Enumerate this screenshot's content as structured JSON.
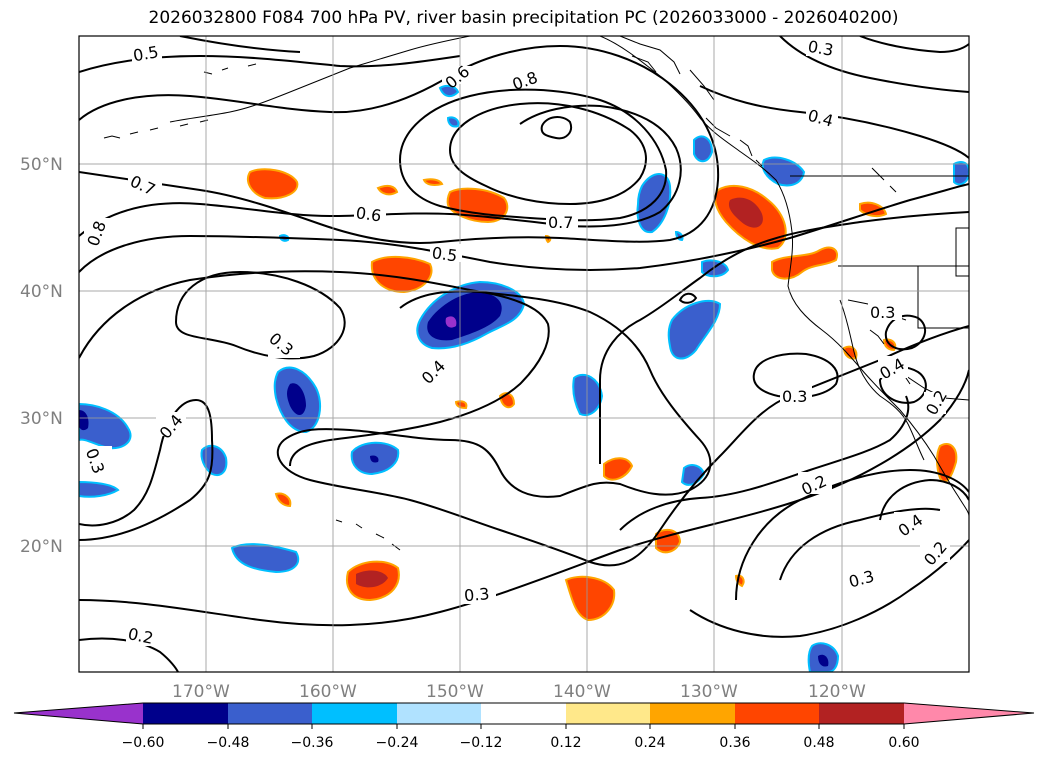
{
  "title": "2026032800 F084 700 hPa PV, river basin precipitation PC (2026033000 - 2026040200)",
  "lat_labels": [
    "50°N",
    "40°N",
    "30°N",
    "20°N"
  ],
  "lon_labels": [
    "170°W",
    "160°W",
    "150°W",
    "140°W",
    "130°W",
    "120°W"
  ],
  "contour_labels": [
    "0.5",
    "0.6",
    "0.8",
    "0.3",
    "0.4",
    "0.7",
    "0.8",
    "0.6",
    "0.7",
    "0.5",
    "0.3",
    "0.4",
    "0.3",
    "0.4",
    "0.3",
    "0.3",
    "0.4",
    "0.2",
    "0.2",
    "0.4",
    "0.2",
    "0.3",
    "0.3",
    "0.2",
    "0.3",
    "0.4"
  ],
  "colorbar": {
    "ticks": [
      "−0.60",
      "−0.48",
      "−0.36",
      "−0.24",
      "−0.12",
      "0.12",
      "0.24",
      "0.36",
      "0.48",
      "0.60"
    ],
    "colors": [
      "#9932cc",
      "#00008b",
      "#3a5fcd",
      "#00bfff",
      "#b0e2ff",
      "#ffffff",
      "#ffe88a",
      "#ffa500",
      "#ff4500",
      "#b22222",
      "#ff88aa"
    ]
  },
  "map_extent": {
    "lon_min": -180,
    "lon_max": -110,
    "lat_min": 10,
    "lat_max": 60
  }
}
